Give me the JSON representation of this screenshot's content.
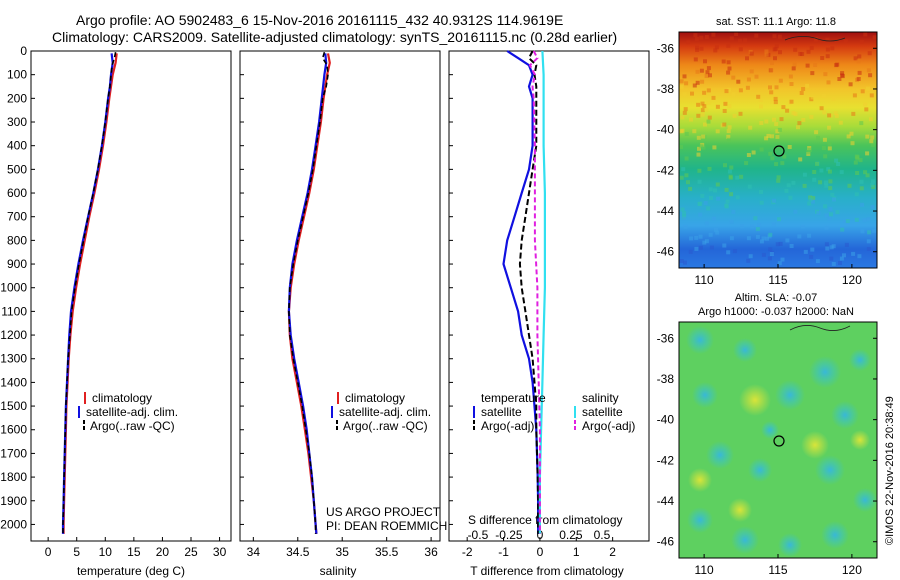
{
  "header": {
    "line1": "Argo profile: AO 5902483_6 15-Nov-2016 20161115_432 40.9312S 114.9619E",
    "line2": "Climatology: CARS2009. Satellite-adjusted climatology: synTS_20161115.nc (0.28d earlier)"
  },
  "colors": {
    "climatology": "#e02020",
    "satellite": "#1010e0",
    "argo": "#000000",
    "salinity_satellite": "#30e0f0",
    "salinity_argo": "#e020e0"
  },
  "depth_ticks": [
    "0",
    "100",
    "200",
    "300",
    "400",
    "500",
    "600",
    "700",
    "800",
    "900",
    "1000",
    "1100",
    "1200",
    "1300",
    "1400",
    "1500",
    "1600",
    "1700",
    "1800",
    "1900",
    "2000"
  ],
  "panels": {
    "temperature": {
      "xlabel": "temperature (deg C)",
      "xticks": [
        "0",
        "5",
        "10",
        "15",
        "20",
        "25",
        "30"
      ],
      "legend": [
        "climatology",
        "satellite-adj. clim.",
        "Argo(..raw -QC)"
      ]
    },
    "salinity": {
      "xlabel": "salinity",
      "xticks": [
        "34",
        "34.5",
        "35",
        "35.5",
        "36"
      ],
      "legend": [
        "climatology",
        "satellite-adj. clim.",
        "Argo(..raw -QC)"
      ],
      "credit1": "US ARGO PROJECT",
      "credit2": "PI: DEAN ROEMMICH"
    },
    "difference": {
      "xlabel": "T difference from climatology",
      "xticks": [
        "-2",
        "-1",
        "0",
        "1",
        "2"
      ],
      "top_xlabel": "S difference from climatology",
      "top_xticks": [
        "-0.5",
        "-0.25",
        "0",
        "0.25",
        "0.5"
      ],
      "legend_temp_head": "temperature",
      "legend_sal_head": "salinity",
      "legend_temp": [
        "satellite",
        "Argo(-adj)"
      ],
      "legend_sal": [
        "satellite",
        "Argo(-adj)"
      ]
    },
    "sst_map": {
      "title": "sat. SST: 11.1  Argo: 11.8",
      "yticks": [
        "-36",
        "-38",
        "-40",
        "-42",
        "-44",
        "-46"
      ],
      "xticks": [
        "110",
        "115",
        "120"
      ]
    },
    "sla_map": {
      "title1": "Altim. SLA: -0.07",
      "title2": "Argo h1000: -0.037 h2000: NaN",
      "yticks": [
        "-36",
        "-38",
        "-40",
        "-42",
        "-44",
        "-46"
      ],
      "xticks": [
        "110",
        "115",
        "120"
      ]
    },
    "side_stamp": "©IMOS 22-Nov-2016 20:38:49"
  },
  "chart_data": [
    {
      "type": "line",
      "xlabel": "temperature (deg C)",
      "ylabel": "",
      "xlim": [
        -3,
        32
      ],
      "ylim": [
        2070,
        0
      ],
      "series": [
        {
          "name": "climatology",
          "depth": [
            10,
            50,
            100,
            150,
            200,
            300,
            400,
            500,
            600,
            700,
            800,
            900,
            1000,
            1100,
            1200,
            1300,
            1400,
            1500,
            1600,
            1700,
            1800,
            1900,
            2000,
            2040
          ],
          "values": [
            12.0,
            11.8,
            11.3,
            11.0,
            10.7,
            10.2,
            9.6,
            8.9,
            8.1,
            7.2,
            6.4,
            5.6,
            4.9,
            4.3,
            3.9,
            3.6,
            3.4,
            3.2,
            3.1,
            3.0,
            2.9,
            2.8,
            2.7,
            2.7
          ]
        },
        {
          "name": "satellite-adj. clim.",
          "depth": [
            10,
            50,
            100,
            150,
            200,
            300,
            400,
            500,
            600,
            700,
            800,
            900,
            1000,
            1100,
            1200,
            1300,
            1400,
            1500,
            1600,
            1700,
            1800,
            1900,
            2000,
            2040
          ],
          "values": [
            11.1,
            11.3,
            11.0,
            10.8,
            10.5,
            10.0,
            9.4,
            8.7,
            7.9,
            7.0,
            6.1,
            5.3,
            4.6,
            4.0,
            3.7,
            3.5,
            3.3,
            3.1,
            3.0,
            2.9,
            2.8,
            2.7,
            2.6,
            2.6
          ]
        },
        {
          "name": "Argo(..raw -QC)",
          "depth": [
            5,
            30,
            60,
            100,
            150,
            200,
            300,
            400,
            500,
            600,
            700,
            800,
            900,
            1000,
            1100,
            1200,
            1300,
            1400,
            1500,
            1600,
            1700,
            1800,
            1900,
            2000,
            2040
          ],
          "values": [
            11.8,
            11.6,
            11.2,
            11.0,
            10.8,
            10.5,
            10.0,
            9.4,
            8.7,
            7.9,
            7.0,
            6.2,
            5.4,
            4.7,
            4.1,
            3.8,
            3.5,
            3.3,
            3.1,
            3.0,
            2.9,
            2.8,
            2.7,
            2.6,
            2.6
          ]
        }
      ]
    },
    {
      "type": "line",
      "xlabel": "salinity",
      "ylabel": "",
      "xlim": [
        33.85,
        36.1
      ],
      "ylim": [
        2070,
        0
      ],
      "series": [
        {
          "name": "climatology",
          "depth": [
            10,
            50,
            100,
            200,
            300,
            400,
            500,
            600,
            700,
            800,
            900,
            1000,
            1100,
            1200,
            1300,
            1400,
            1500,
            1600,
            1700,
            1800,
            1900,
            2000,
            2040
          ],
          "values": [
            34.84,
            34.86,
            34.83,
            34.79,
            34.76,
            34.72,
            34.68,
            34.63,
            34.57,
            34.51,
            34.46,
            34.42,
            34.4,
            34.41,
            34.44,
            34.49,
            34.54,
            34.58,
            34.62,
            34.65,
            34.68,
            34.7,
            34.71
          ]
        },
        {
          "name": "satellite-adj. clim.",
          "depth": [
            10,
            50,
            100,
            200,
            300,
            400,
            500,
            600,
            700,
            800,
            900,
            1000,
            1100,
            1200,
            1300,
            1400,
            1500,
            1600,
            1700,
            1800,
            1900,
            2000,
            2040
          ],
          "values": [
            34.81,
            34.82,
            34.8,
            34.77,
            34.74,
            34.7,
            34.66,
            34.61,
            34.55,
            34.49,
            34.44,
            34.41,
            34.4,
            34.42,
            34.46,
            34.51,
            34.56,
            34.6,
            34.63,
            34.66,
            34.68,
            34.7,
            34.71
          ]
        },
        {
          "name": "Argo(..raw -QC)",
          "depth": [
            5,
            30,
            60,
            100,
            150,
            200,
            300,
            400,
            500,
            600,
            700,
            800,
            900,
            1000,
            1100,
            1200,
            1300,
            1400,
            1500,
            1600,
            1700,
            1800,
            1900,
            2000,
            2040
          ],
          "values": [
            34.8,
            34.78,
            34.83,
            34.84,
            34.82,
            34.78,
            34.75,
            34.71,
            34.67,
            34.62,
            34.56,
            34.5,
            34.45,
            34.41,
            34.4,
            34.41,
            34.45,
            34.5,
            34.55,
            34.59,
            34.63,
            34.66,
            34.68,
            34.7,
            34.7
          ]
        }
      ]
    },
    {
      "type": "line",
      "xlabel": "T difference from climatology",
      "ylabel": "",
      "xlim": [
        -2.5,
        3.0
      ],
      "ylim": [
        2070,
        0
      ],
      "series": [
        {
          "name": "temperature satellite",
          "depth": [
            0,
            30,
            60,
            100,
            150,
            200,
            300,
            400,
            500,
            600,
            700,
            800,
            900,
            1000,
            1100,
            1200,
            1300,
            1400,
            1500,
            1600,
            1700,
            1800,
            1900,
            2000,
            2040
          ],
          "values": [
            -0.9,
            -0.6,
            -0.3,
            -0.2,
            -0.3,
            -0.2,
            -0.2,
            -0.2,
            -0.3,
            -0.5,
            -0.7,
            -0.9,
            -1.0,
            -0.8,
            -0.6,
            -0.5,
            -0.3,
            -0.2,
            -0.15,
            -0.1,
            -0.08,
            -0.06,
            -0.05,
            -0.05,
            -0.05
          ]
        },
        {
          "name": "temperature Argo(-adj)",
          "depth": [
            0,
            30,
            60,
            100,
            150,
            200,
            300,
            400,
            500,
            600,
            700,
            800,
            900,
            1000,
            1100,
            1200,
            1300,
            1400,
            1500,
            1600,
            1700,
            1800,
            1900,
            2000,
            2040
          ],
          "values": [
            -0.2,
            -0.3,
            -0.1,
            -0.15,
            -0.1,
            -0.1,
            -0.1,
            -0.1,
            -0.2,
            -0.3,
            -0.4,
            -0.5,
            -0.55,
            -0.5,
            -0.4,
            -0.3,
            -0.2,
            -0.15,
            -0.1,
            -0.1,
            -0.08,
            -0.06,
            -0.05,
            -0.05,
            -0.05
          ]
        },
        {
          "name": "salinity satellite",
          "depth": [
            0,
            100,
            200,
            400,
            600,
            800,
            1000,
            1200,
            1400,
            1600,
            1800,
            2000,
            2040
          ],
          "values": [
            0.02,
            0.03,
            0.03,
            0.03,
            0.04,
            0.04,
            0.04,
            0.03,
            0.02,
            0.01,
            0.0,
            0.0,
            0.0
          ]
        },
        {
          "name": "salinity Argo(-adj)",
          "depth": [
            0,
            30,
            60,
            100,
            150,
            200,
            400,
            600,
            800,
            1000,
            1200,
            1400,
            1600,
            1800,
            2000,
            2040
          ],
          "values": [
            -0.05,
            -0.02,
            -0.08,
            -0.04,
            -0.06,
            -0.05,
            -0.04,
            -0.04,
            -0.04,
            -0.02,
            -0.02,
            -0.01,
            0.0,
            0.0,
            0.0,
            0.0
          ]
        }
      ]
    }
  ]
}
